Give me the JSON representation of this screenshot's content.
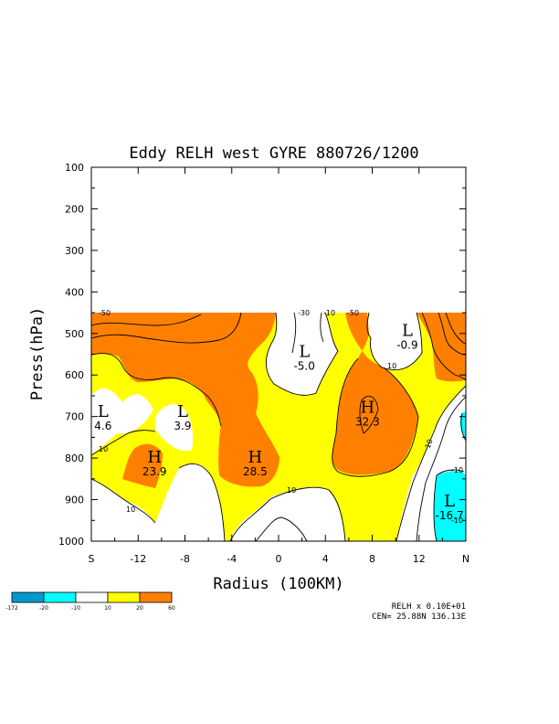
{
  "chart_data": {
    "type": "contour",
    "title": "Eddy RELH west GYRE 880726/1200",
    "xlabel": "Radius (100KM)",
    "ylabel": "Press(hPa)",
    "x_ticks": [
      "S",
      "-12",
      "-8",
      "-4",
      "0",
      "4",
      "8",
      "12",
      "N"
    ],
    "x_tick_values": [
      -16,
      -12,
      -8,
      -4,
      0,
      4,
      8,
      12,
      16
    ],
    "y_ticks": [
      "100",
      "200",
      "300",
      "400",
      "500",
      "600",
      "700",
      "800",
      "900",
      "1000"
    ],
    "y_tick_values": [
      100,
      200,
      300,
      400,
      500,
      600,
      700,
      800,
      900,
      1000
    ],
    "xlim": [
      -16,
      16
    ],
    "ylim": [
      1000,
      100
    ],
    "data_top_pressure": 450,
    "levels": [
      -10,
      10,
      20
    ],
    "contour_labels": [
      "-50",
      "-30",
      "-10",
      "-50",
      "10",
      "10",
      "10",
      "10",
      "-10",
      "10",
      "-10"
    ],
    "extrema": [
      {
        "type": "L",
        "value": "4.6",
        "x": -15.0,
        "p": 710
      },
      {
        "type": "L",
        "value": "3.9",
        "x": -8.2,
        "p": 710
      },
      {
        "type": "H",
        "value": "23.9",
        "x": -10.6,
        "p": 820
      },
      {
        "type": "H",
        "value": "28.5",
        "x": -2.0,
        "p": 820
      },
      {
        "type": "L",
        "value": "-5.0",
        "x": 2.2,
        "p": 565
      },
      {
        "type": "H",
        "value": "32.3",
        "x": 7.6,
        "p": 700
      },
      {
        "type": "L",
        "value": "-0.9",
        "x": 11.0,
        "p": 515
      },
      {
        "type": "L",
        "value": "-16.7",
        "x": 14.6,
        "p": 925
      }
    ],
    "legend": {
      "colors": [
        "#0099cc",
        "#00ffff",
        "#ffffff",
        "#ffff00",
        "#ff8000"
      ],
      "labels": [
        "-172",
        "-20",
        "-10",
        "10",
        "20",
        "60"
      ]
    },
    "footer": {
      "line1": "RELH x  0.10E+01",
      "line2": "CEN= 25.88N  136.13E"
    }
  }
}
